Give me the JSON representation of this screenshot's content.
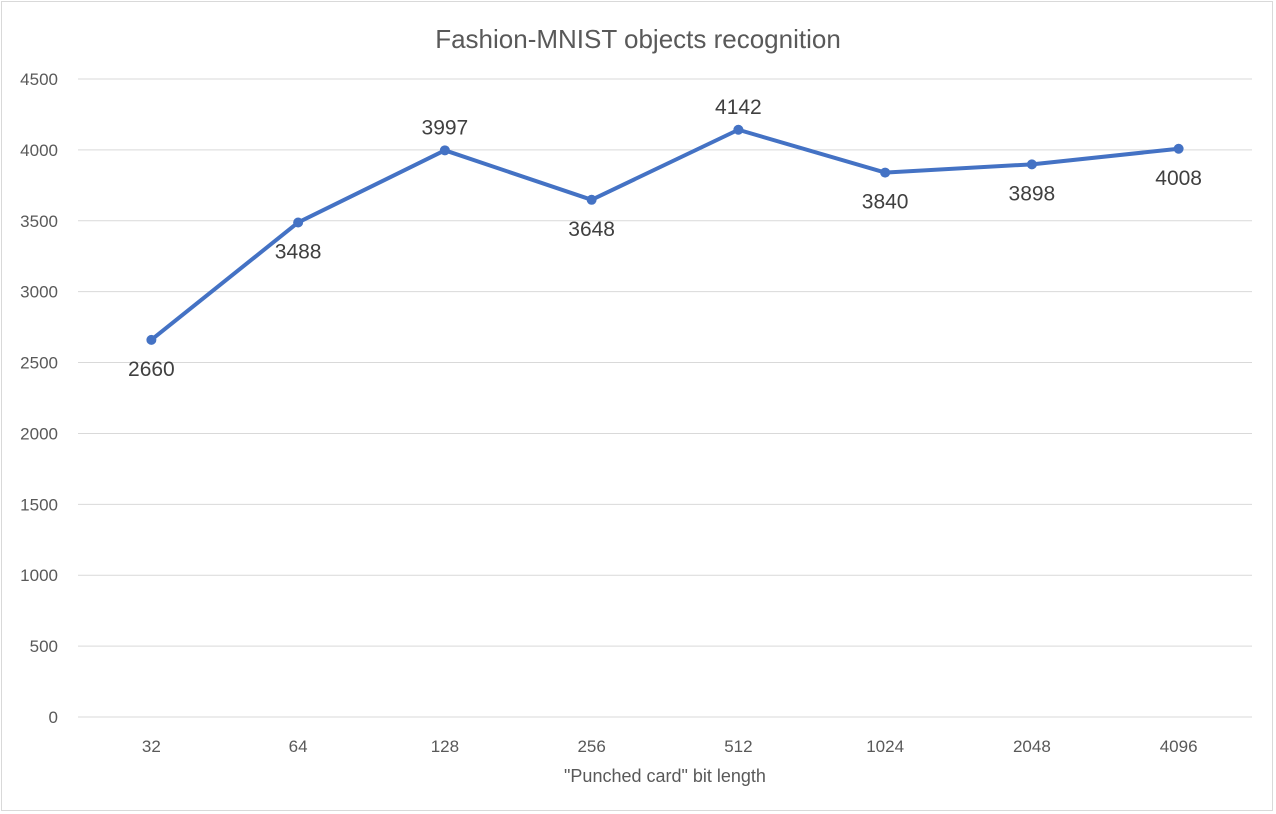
{
  "chart_data": {
    "type": "line",
    "title": "Fashion-MNIST objects recognition",
    "xlabel": "\"Punched card\" bit length",
    "ylabel": "",
    "categories": [
      "32",
      "64",
      "128",
      "256",
      "512",
      "1024",
      "2048",
      "4096"
    ],
    "series": [
      {
        "values": [
          2660,
          3488,
          3997,
          3648,
          4142,
          3840,
          3898,
          4008
        ],
        "color": "#4472c4"
      }
    ],
    "data_labels": [
      "2660",
      "3488",
      "3997",
      "3648",
      "4142",
      "3840",
      "3898",
      "4008"
    ],
    "data_label_positions": [
      "below",
      "below",
      "above",
      "below",
      "above",
      "below",
      "below",
      "below"
    ],
    "ylim": [
      0,
      4500
    ],
    "ytick_step": 500,
    "yticks": [
      "0",
      "500",
      "1000",
      "1500",
      "2000",
      "2500",
      "3000",
      "3500",
      "4000",
      "4500"
    ],
    "grid": true,
    "legend": "none",
    "colors": {
      "gridline": "#d9d9d9",
      "axis_line": "#d9d9d9",
      "text": "#595959",
      "data_label_text": "#404040",
      "frame_border": "#d9d9d9"
    }
  }
}
